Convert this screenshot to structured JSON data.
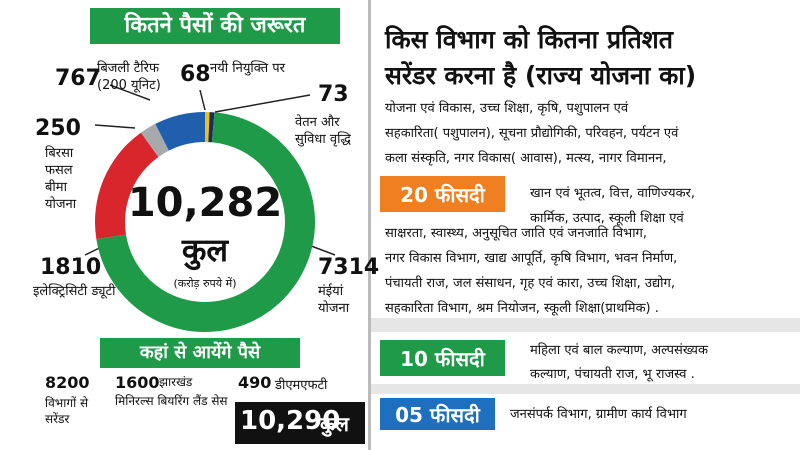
{
  "chart_data": {
    "type": "pie",
    "title": "कितने पैसों की जरूरत",
    "total": "10,282",
    "total_caption": "कुल",
    "unit": "(करोड़ रुपये में)",
    "categories": [
      "नयी नियुक्ति पर",
      "वेतन और सुविधा वृद्धि",
      "मंईयां योजना",
      "इलेक्ट्रिसिटी ड्यूटी",
      "बिरसा फसल बीमा योजना",
      "बिजली टैरिफ (200 यूनिट)"
    ],
    "values": [
      68,
      73,
      7314,
      1810,
      250,
      767
    ],
    "colors": [
      "#e8c21a",
      "#1d2a5c",
      "#1e9a48",
      "#d9262c",
      "#a7a9ac",
      "#1f5fae"
    ]
  },
  "sources": {
    "title": "कहां से आयेंगे पैसे",
    "items": [
      {
        "amount": "8200",
        "label": "विभागों से सरेंडर"
      },
      {
        "amount": "1600",
        "label": "झारखंड मिनिरल्स बियरिंग लैंड सेस"
      },
      {
        "amount": "490",
        "label": "डीएमएफटी"
      }
    ],
    "total": "10,290",
    "total_caption": "कुल"
  },
  "allocation": {
    "title_lines": [
      "किस विभाग को कितना प्रतिशत",
      "सरेंडर करना है (राज्य योजना का)"
    ],
    "groups": [
      {
        "badge": "20 फीसदी",
        "lines": [
          "योजना एवं विकास, उच्च शिक्षा, कृषि, पशुपालन एवं",
          "सहकारिता( पशुपालन), सूचना प्रौद्योगिकी, परिवहन, पर्यटन एवं",
          "कला संस्कृति, नगर विकास( आवास), मत्स्य, नागर विमानन,",
          "खान एवं भूतत्व, वित्त, वाणिज्यकर,",
          "कार्मिक, उत्पाद, स्कूली शिक्षा एवं",
          "साक्षरता, स्वास्थ्य, अनुसूचित जाति एवं जनजाति विभाग,",
          "नगर विकास विभाग, खाद्य आपूर्ति, कृषि विभाग, भवन निर्माण,",
          "पंचायती राज, जल संसाधन, गृह एवं कारा, उच्च शिक्षा, उद्योग,",
          "सहकारिता विभाग, श्रम नियोजन, स्कूली शिक्षा(प्राथमिक) ."
        ]
      },
      {
        "badge": "10 फीसदी",
        "lines": [
          "महिला एवं बाल कल्याण, अल्पसंख्यक",
          "कल्याण, पंचायती राज, भू राजस्व ."
        ]
      },
      {
        "badge": "05 फीसदी",
        "lines": [
          "जनसंपर्क विभाग, ग्रामीण कार्य विभाग"
        ]
      }
    ]
  }
}
